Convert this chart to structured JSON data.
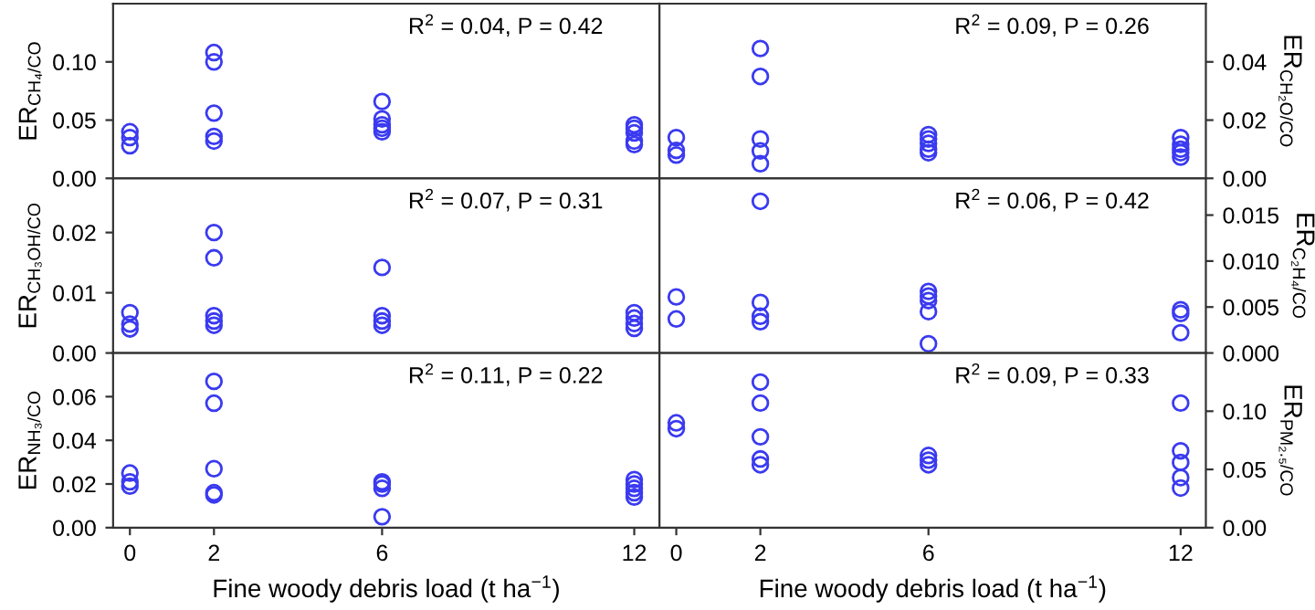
{
  "chart_data": [
    {
      "type": "scatter",
      "ylabel": "ER$_{CH₄/CO}$",
      "ylim": [
        0,
        0.15
      ],
      "yticks": [
        {
          "value": 0,
          "label": "0.00"
        },
        {
          "value": 0.05,
          "label": "0.05"
        },
        {
          "value": 0.1,
          "label": "0.10"
        }
      ],
      "xlim": [
        -0.4,
        12.6
      ],
      "xticks": [
        0,
        2,
        6,
        12
      ],
      "tick_labels": "y",
      "marker": "circle",
      "annotations": [
        "R$^{2}$ = 0.04, P = 0.42"
      ],
      "series": [
        {
          "color": "#3a3af0",
          "x": [
            0,
            0,
            0,
            2,
            2,
            2,
            2,
            2,
            6,
            6,
            6,
            6,
            6,
            12,
            12,
            12,
            12,
            12
          ],
          "values": [
            0.04,
            0.035,
            0.028,
            0.108,
            0.1,
            0.056,
            0.036,
            0.032,
            0.066,
            0.051,
            0.046,
            0.043,
            0.04,
            0.046,
            0.043,
            0.039,
            0.032,
            0.029
          ]
        }
      ]
    },
    {
      "type": "scatter",
      "y2label": "ER$_{CH₂O/CO}$",
      "y2lim": [
        0,
        0.06
      ],
      "y2ticks": [
        {
          "value": 0,
          "label": "0.00"
        },
        {
          "value": 0.02,
          "label": "0.02"
        },
        {
          "value": 0.04,
          "label": "0.04"
        }
      ],
      "xlim": [
        -0.4,
        12.6
      ],
      "xticks": [
        0,
        2,
        6,
        12
      ],
      "tick_labels": "y",
      "marker": "circle",
      "annotations": [
        "R$^{2}$ = 0.09, P = 0.26"
      ],
      "series": [
        {
          "color": "#3a3af0",
          "axis": "y2",
          "x": [
            0,
            0,
            0,
            2,
            2,
            2,
            2,
            2,
            6,
            6,
            6,
            6,
            6,
            12,
            12,
            12,
            12,
            12
          ],
          "values": [
            0.014,
            0.0096,
            0.008,
            0.0446,
            0.035,
            0.0135,
            0.0094,
            0.005,
            0.015,
            0.0135,
            0.012,
            0.01,
            0.0088,
            0.014,
            0.0117,
            0.01,
            0.0088,
            0.0073
          ]
        }
      ]
    },
    {
      "type": "scatter",
      "ylabel": "ER$_{CH₃OH/CO}$",
      "ylim": [
        0,
        0.029
      ],
      "yticks": [
        {
          "value": 0,
          "label": "0.00"
        },
        {
          "value": 0.01,
          "label": "0.01"
        },
        {
          "value": 0.02,
          "label": "0.02"
        }
      ],
      "xlim": [
        -0.4,
        12.6
      ],
      "xticks": [
        0,
        2,
        6,
        12
      ],
      "tick_labels": "y",
      "marker": "circle",
      "annotations": [
        "R$^{2}$ = 0.07, P = 0.31"
      ],
      "series": [
        {
          "color": "#3a3af0",
          "x": [
            0,
            0,
            0,
            2,
            2,
            2,
            2,
            2,
            6,
            6,
            6,
            6,
            12,
            12,
            12,
            12
          ],
          "values": [
            0.0067,
            0.0048,
            0.004,
            0.02,
            0.0158,
            0.0062,
            0.0053,
            0.0046,
            0.0142,
            0.0062,
            0.0053,
            0.0046,
            0.0067,
            0.0058,
            0.0049,
            0.0041
          ]
        }
      ]
    },
    {
      "type": "scatter",
      "y2label": "ER$_{C₂H₄/CO}$",
      "y2lim": [
        0,
        0.019
      ],
      "y2ticks": [
        {
          "value": 0,
          "label": "0.000"
        },
        {
          "value": 0.005,
          "label": "0.005"
        },
        {
          "value": 0.01,
          "label": "0.010"
        },
        {
          "value": 0.015,
          "label": "0.015"
        }
      ],
      "xlim": [
        -0.4,
        12.6
      ],
      "xticks": [
        0,
        2,
        6,
        12
      ],
      "tick_labels": "y",
      "marker": "circle",
      "annotations": [
        "R$^{2}$ = 0.06, P = 0.42"
      ],
      "series": [
        {
          "color": "#3a3af0",
          "axis": "y2",
          "x": [
            0,
            0,
            2,
            2,
            2,
            2,
            6,
            6,
            6,
            6,
            6,
            12,
            12,
            12
          ],
          "values": [
            0.0061,
            0.0037,
            0.0165,
            0.0055,
            0.004,
            0.0034,
            0.0067,
            0.0062,
            0.0057,
            0.0045,
            0.001,
            0.0047,
            0.0043,
            0.0022
          ]
        }
      ]
    },
    {
      "type": "scatter",
      "ylabel": "ER$_{NH₃/CO}$",
      "xlabel": "Fine woody debris load (t ha$^{−1}$)",
      "ylim": [
        0,
        0.08
      ],
      "yticks": [
        {
          "value": 0,
          "label": "0.00"
        },
        {
          "value": 0.02,
          "label": "0.02"
        },
        {
          "value": 0.04,
          "label": "0.04"
        },
        {
          "value": 0.06,
          "label": "0.06"
        }
      ],
      "xlim": [
        -0.4,
        12.6
      ],
      "xticks": [
        0,
        2,
        6,
        12
      ],
      "marker": "circle",
      "annotations": [
        "R$^{2}$ = 0.11, P = 0.22"
      ],
      "series": [
        {
          "color": "#3a3af0",
          "x": [
            0,
            0,
            0,
            2,
            2,
            2,
            2,
            2,
            6,
            6,
            6,
            6,
            12,
            12,
            12,
            12,
            12
          ],
          "values": [
            0.025,
            0.021,
            0.019,
            0.067,
            0.057,
            0.027,
            0.016,
            0.015,
            0.021,
            0.02,
            0.018,
            0.005,
            0.022,
            0.02,
            0.018,
            0.016,
            0.014
          ]
        }
      ]
    },
    {
      "type": "scatter",
      "y2label": "ER$_{PM₂.₅/CO}$",
      "xlabel": "Fine woody debris load (t ha$^{−1}$)",
      "y2lim": [
        0,
        0.15
      ],
      "y2ticks": [
        {
          "value": 0,
          "label": "0.00"
        },
        {
          "value": 0.05,
          "label": "0.05"
        },
        {
          "value": 0.1,
          "label": "0.10"
        }
      ],
      "xlim": [
        -0.4,
        12.6
      ],
      "xticks": [
        0,
        2,
        6,
        12
      ],
      "marker": "circle",
      "annotations": [
        "R$^{2}$ = 0.09, P = 0.33"
      ],
      "series": [
        {
          "color": "#3a3af0",
          "axis": "y2",
          "x": [
            0,
            0,
            2,
            2,
            2,
            2,
            2,
            6,
            6,
            6,
            12,
            12,
            12,
            12,
            12
          ],
          "values": [
            0.09,
            0.085,
            0.125,
            0.107,
            0.078,
            0.059,
            0.054,
            0.062,
            0.058,
            0.054,
            0.107,
            0.066,
            0.056,
            0.043,
            0.034
          ]
        }
      ]
    }
  ]
}
